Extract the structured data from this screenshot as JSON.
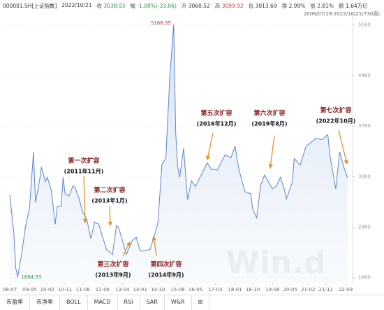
{
  "header": {
    "code": "000001.SH[上证指数]",
    "date": "2022/10/21",
    "items": [
      {
        "label": "收",
        "value": "3038.93"
      },
      {
        "label": "幅",
        "value": "-1.08%(-33.06)"
      },
      {
        "label": "开",
        "value": "3060.52"
      },
      {
        "label": "高",
        "value": "3099.92"
      },
      {
        "label": "低",
        "value": "3013.69"
      },
      {
        "label": "换",
        "value": "2.99%"
      },
      {
        "label": "振",
        "value": "2.81%"
      },
      {
        "label": "额",
        "value": "1.64万亿"
      }
    ],
    "range": "2008/07/18-2022/10/21(730周)"
  },
  "chart_data": {
    "type": "line",
    "x": [
      "08-07",
      "08-09",
      "08-10",
      "08-11",
      "09-01",
      "09-03",
      "09-05",
      "09-07",
      "09-08",
      "09-10",
      "09-11",
      "10-01",
      "10-02",
      "10-04",
      "10-06",
      "10-07",
      "10-09",
      "10-10",
      "10-11",
      "11-01",
      "11-03",
      "11-04",
      "11-06",
      "11-08",
      "11-10",
      "11-12",
      "12-02",
      "12-04",
      "12-06",
      "12-08",
      "12-11",
      "13-01",
      "13-02",
      "13-04",
      "13-06",
      "13-09",
      "13-11",
      "14-01",
      "14-03",
      "14-06",
      "14-08",
      "14-10",
      "14-12",
      "15-02",
      "15-04",
      "15-06",
      "15-07",
      "15-08",
      "15-09",
      "15-11",
      "16-01",
      "16-03",
      "16-05",
      "16-08",
      "16-11",
      "17-01",
      "17-04",
      "17-08",
      "17-11",
      "18-01",
      "18-03",
      "18-06",
      "18-09",
      "18-10",
      "18-12",
      "19-02",
      "19-04",
      "19-06",
      "19-08",
      "19-10",
      "19-12",
      "20-02",
      "20-03",
      "20-06",
      "20-07",
      "20-10",
      "21-01",
      "21-02",
      "21-06",
      "21-09",
      "21-12",
      "22-01",
      "22-04",
      "22-06",
      "22-08",
      "22-10"
    ],
    "series": [
      {
        "name": "上证指数",
        "color": "#5b86c6",
        "values": [
          2800,
          2300,
          1800,
          1664.93,
          1990,
          2370,
          2630,
          3400,
          2700,
          2990,
          3190,
          2990,
          3050,
          2870,
          2400,
          2640,
          2650,
          3050,
          2820,
          2790,
          2930,
          2910,
          2760,
          2560,
          2470,
          2200,
          2430,
          2400,
          2220,
          2050,
          1980,
          2380,
          2360,
          2180,
          1980,
          2170,
          2220,
          2030,
          2030,
          2050,
          2220,
          2420,
          3230,
          3310,
          4440,
          5166.35,
          3660,
          3200,
          3050,
          3450,
          2740,
          3000,
          2920,
          3090,
          3250,
          3160,
          3150,
          3360,
          3320,
          3480,
          3160,
          2850,
          2820,
          2600,
          2490,
          2940,
          3080,
          2980,
          2890,
          2930,
          3050,
          2880,
          2750,
          2980,
          3310,
          3220,
          3480,
          3500,
          3590,
          3570,
          3640,
          3360,
          2890,
          3400,
          3200,
          3038.93
        ]
      }
    ],
    "xticks": [
      "08-07",
      "09-05",
      "10-02",
      "10-11",
      "11-08",
      "12-06",
      "13-04",
      "14-01",
      "14-10",
      "15-08",
      "16-05",
      "17-03",
      "18-01",
      "18-10",
      "19-08",
      "20-05",
      "21-02",
      "21-11",
      "22-09"
    ],
    "ylim": [
      1580,
      5330
    ],
    "yticks": [
      1660,
      2360,
      3060,
      3760,
      4460,
      5160
    ],
    "grid": true,
    "high_label": 5166.35,
    "low_label": 1664.93,
    "annotations": [
      {
        "title": "第一次扩容",
        "date": "(2011年11月)"
      },
      {
        "title": "第二次扩容",
        "date": "(2013年1月)"
      },
      {
        "title": "第三次扩容",
        "date": "(2013年9月)"
      },
      {
        "title": "第四次扩容",
        "date": "(2014年9月)"
      },
      {
        "title": "第五次扩容",
        "date": "(2016年12月)"
      },
      {
        "title": "第六次扩容",
        "date": "(2019年8月)"
      },
      {
        "title": "第七次扩容",
        "date": "(2022年10月)"
      }
    ],
    "watermark": "Win.d"
  },
  "tabs": [
    "市盈率",
    "市净率",
    "BOLL",
    "MACD",
    "RSI",
    "SAR",
    "W&R",
    "⊞"
  ]
}
